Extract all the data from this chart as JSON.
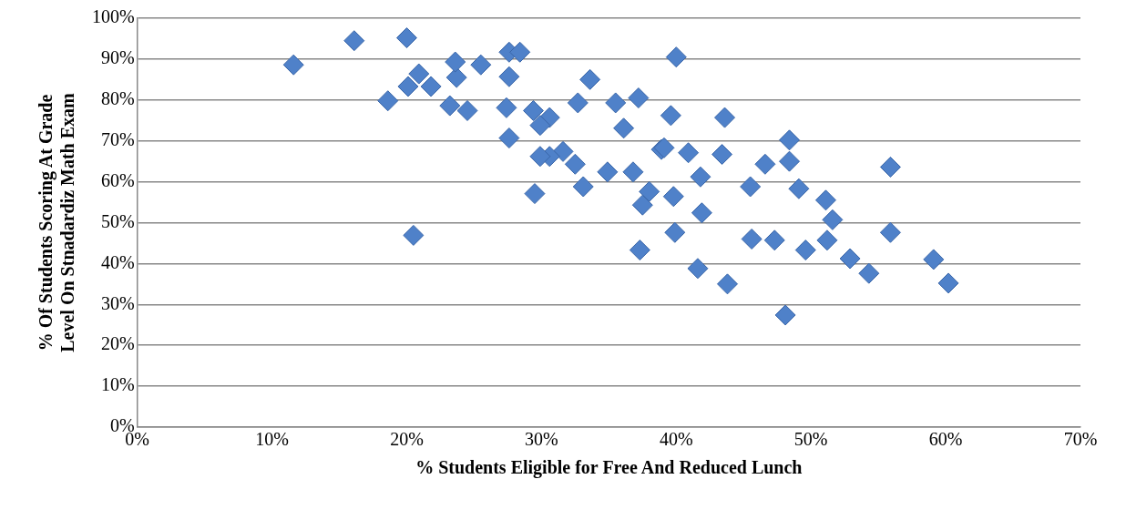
{
  "chart_data": {
    "type": "scatter",
    "xlabel": "% Students Eligible for Free And Reduced Lunch",
    "ylabel": "% Of Students Scoring At Grade\nLevel On Stnadardiz Math Exam",
    "xlim": [
      0,
      70
    ],
    "xticks": [
      {
        "value": 0,
        "label": "0%"
      },
      {
        "value": 10,
        "label": "10%"
      },
      {
        "value": 20,
        "label": "20%"
      },
      {
        "value": 30,
        "label": "30%"
      },
      {
        "value": 40,
        "label": "40%"
      },
      {
        "value": 50,
        "label": "50%"
      },
      {
        "value": 60,
        "label": "60%"
      },
      {
        "value": 70,
        "label": "70%"
      }
    ],
    "ylim": [
      0,
      100
    ],
    "yticks": [
      {
        "value": 0,
        "label": "0%"
      },
      {
        "value": 10,
        "label": "10%"
      },
      {
        "value": 20,
        "label": "20%"
      },
      {
        "value": 30,
        "label": "30%"
      },
      {
        "value": 40,
        "label": "40%"
      },
      {
        "value": 50,
        "label": "50%"
      },
      {
        "value": 60,
        "label": "60%"
      },
      {
        "value": 70,
        "label": "70%"
      },
      {
        "value": 80,
        "label": "80%"
      },
      {
        "value": 90,
        "label": "90%"
      },
      {
        "value": 100,
        "label": "100%"
      }
    ],
    "grid": "y",
    "legend": false,
    "marker": "diamond",
    "series": [
      {
        "color": "#4f81c9",
        "x": [
          11.6,
          16.1,
          20.0,
          18.6,
          20.9,
          21.8,
          20.1,
          23.7,
          23.6,
          25.5,
          27.6,
          28.4,
          27.6,
          23.2,
          24.5,
          27.4,
          27.6,
          29.4,
          30.6,
          29.9,
          33.6,
          32.7,
          35.5,
          37.2,
          36.1,
          31.6,
          30.6,
          32.5,
          34.9,
          36.8,
          29.5,
          33.1,
          38.0,
          37.5,
          38.9,
          20.5,
          39.6,
          43.6,
          29.9,
          39.1,
          40.9,
          43.4,
          41.8,
          45.5,
          46.6,
          48.4,
          48.4,
          49.1,
          39.8,
          41.9,
          51.1,
          51.6,
          51.2,
          45.6,
          47.3,
          49.6,
          52.9,
          54.3,
          55.9,
          55.9,
          37.3,
          39.9,
          41.6,
          43.8,
          48.1,
          59.1,
          60.2,
          40.0
        ],
        "values": [
          88.6,
          94.5,
          95.2,
          79.8,
          86.4,
          83.3,
          83.3,
          85.5,
          89.3,
          88.6,
          91.7,
          91.7,
          85.7,
          78.6,
          77.4,
          78.1,
          70.7,
          77.4,
          75.7,
          73.8,
          85.0,
          79.3,
          79.3,
          80.5,
          73.1,
          67.4,
          66.2,
          64.3,
          62.4,
          62.4,
          57.1,
          58.8,
          57.6,
          54.3,
          67.9,
          46.9,
          76.2,
          75.7,
          66.2,
          68.3,
          67.1,
          66.7,
          61.2,
          58.8,
          64.3,
          65.0,
          70.2,
          58.3,
          56.4,
          52.4,
          55.5,
          50.7,
          45.7,
          46.0,
          45.7,
          43.3,
          41.2,
          37.6,
          63.6,
          47.6,
          43.3,
          47.6,
          38.8,
          35.0,
          27.4,
          41.0,
          35.2,
          90.5
        ]
      }
    ]
  }
}
